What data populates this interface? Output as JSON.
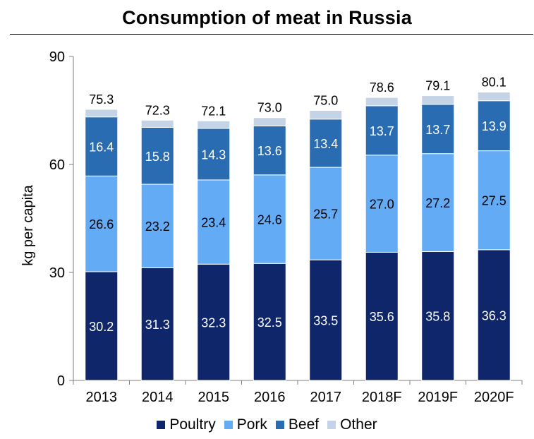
{
  "chart_data": {
    "type": "bar",
    "stacked": true,
    "title": "Consumption of meat in Russia",
    "ylabel": "kg per capita",
    "xlabel": "",
    "ylim": [
      0,
      90
    ],
    "yticks": [
      0,
      30,
      60,
      90
    ],
    "grid": false,
    "legend_position": "bottom",
    "categories": [
      "2013",
      "2014",
      "2015",
      "2016",
      "2017",
      "2018F",
      "2019F",
      "2020F"
    ],
    "totals": [
      "75.3",
      "72.3",
      "72.1",
      "73.0",
      "75.0",
      "78.6",
      "79.1",
      "80.1"
    ],
    "series": [
      {
        "name": "Poultry",
        "color": "#10266b",
        "label_color": "#ffffff",
        "values": [
          30.2,
          31.3,
          32.3,
          32.5,
          33.5,
          35.6,
          35.8,
          36.3
        ]
      },
      {
        "name": "Pork",
        "color": "#64abf6",
        "label_color": "#000000",
        "values": [
          26.6,
          23.2,
          23.4,
          24.6,
          25.7,
          27.0,
          27.2,
          27.5
        ]
      },
      {
        "name": "Beef",
        "color": "#2a6cb2",
        "label_color": "#ffffff",
        "values": [
          16.4,
          15.8,
          14.3,
          13.6,
          13.4,
          13.7,
          13.7,
          13.9
        ]
      },
      {
        "name": "Other",
        "color": "#c5d3e6",
        "label_color": "#000000",
        "values": [
          2.1,
          2.0,
          2.1,
          2.3,
          2.4,
          2.3,
          2.4,
          2.4
        ]
      }
    ]
  }
}
